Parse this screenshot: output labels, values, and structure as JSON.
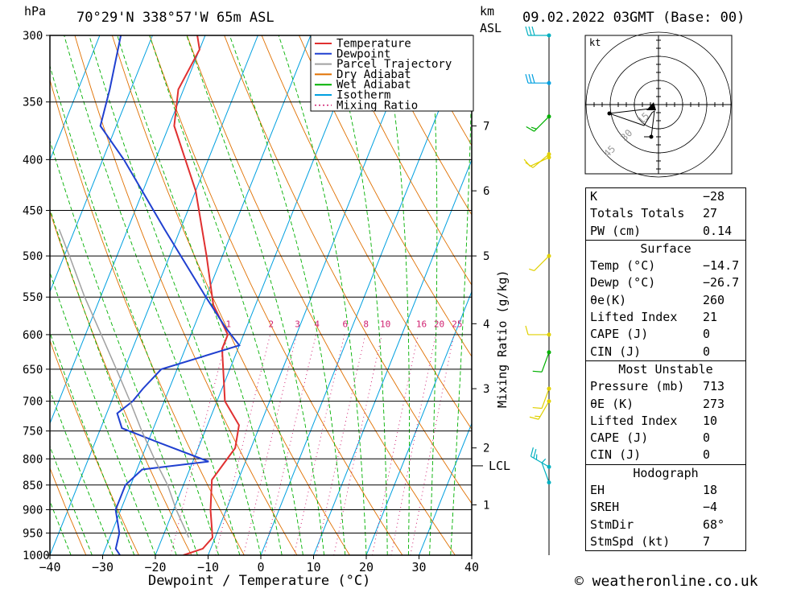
{
  "header": {
    "hpa_label": "hPa",
    "location": "70°29'N  338°57'W  65m  ASL",
    "km_label": "km",
    "asl_label": "ASL",
    "datetime": "09.02.2022  03GMT  (Base: 00)"
  },
  "chart_data": {
    "type": "line",
    "title": "",
    "xlabel": "Dewpoint / Temperature (°C)",
    "ylabel": "hPa",
    "right_label": "Mixing Ratio (g/kg)",
    "xlim": [
      -40,
      40
    ],
    "ylim": [
      1000,
      300
    ],
    "y_scale": "log",
    "skew": "skew-T",
    "grid": true,
    "legend_position": "top-right",
    "x_ticks": [
      "−40",
      "−30",
      "−20",
      "−10",
      "0",
      "10",
      "20",
      "30",
      "40"
    ],
    "pressure_ticks": [
      "300",
      "350",
      "400",
      "450",
      "500",
      "550",
      "600",
      "650",
      "700",
      "750",
      "800",
      "850",
      "900",
      "950",
      "1000"
    ],
    "pressure_values": [
      300,
      350,
      400,
      450,
      500,
      550,
      600,
      650,
      700,
      750,
      800,
      850,
      900,
      950,
      1000
    ],
    "km_ticks": [
      {
        "label": "7",
        "p": 370
      },
      {
        "label": "6",
        "p": 430
      },
      {
        "label": "5",
        "p": 500
      },
      {
        "label": "4",
        "p": 585
      },
      {
        "label": "3",
        "p": 680
      },
      {
        "label": "2",
        "p": 780
      },
      {
        "label": "1",
        "p": 890
      }
    ],
    "lcl": {
      "label": "LCL",
      "p": 813
    },
    "mixing_ratio_labels": [
      "1",
      "2",
      "3",
      "4",
      "6",
      "8",
      "10",
      "16",
      "20",
      "25"
    ],
    "mixing_ratio_values": [
      1,
      2,
      3,
      4,
      6,
      8,
      10,
      16,
      20,
      25
    ],
    "mixing_ratio_label_p": 592,
    "legend": [
      {
        "label": "Temperature",
        "color": "#e03030",
        "style": "solid"
      },
      {
        "label": "Dewpoint",
        "color": "#2040d0",
        "style": "solid"
      },
      {
        "label": "Parcel Trajectory",
        "color": "#a0a0a0",
        "style": "solid"
      },
      {
        "label": "Dry Adiabat",
        "color": "#e07000",
        "style": "solid"
      },
      {
        "label": "Wet Adiabat",
        "color": "#00b000",
        "style": "solid"
      },
      {
        "label": "Isotherm",
        "color": "#00a0e0",
        "style": "solid"
      },
      {
        "label": "Mixing Ratio",
        "color": "#d02070",
        "style": "dotted"
      }
    ],
    "series": [
      {
        "name": "Temperature",
        "color": "#e03030",
        "points": [
          [
            1000,
            -14.7
          ],
          [
            985,
            -11.5
          ],
          [
            960,
            -10.5
          ],
          [
            900,
            -13
          ],
          [
            840,
            -15
          ],
          [
            780,
            -13
          ],
          [
            740,
            -14
          ],
          [
            700,
            -18.5
          ],
          [
            620,
            -23
          ],
          [
            600,
            -23
          ],
          [
            560,
            -28
          ],
          [
            500,
            -33
          ],
          [
            430,
            -40
          ],
          [
            370,
            -49
          ],
          [
            340,
            -51
          ],
          [
            310,
            -50
          ],
          [
            300,
            -51.5
          ]
        ]
      },
      {
        "name": "Dewpoint",
        "color": "#2040d0",
        "points": [
          [
            1000,
            -26.7
          ],
          [
            985,
            -28
          ],
          [
            950,
            -28.5
          ],
          [
            900,
            -31
          ],
          [
            850,
            -31
          ],
          [
            820,
            -29
          ],
          [
            805,
            -17
          ],
          [
            770,
            -28
          ],
          [
            745,
            -36
          ],
          [
            720,
            -38
          ],
          [
            700,
            -36
          ],
          [
            680,
            -35
          ],
          [
            650,
            -33
          ],
          [
            615,
            -20
          ],
          [
            590,
            -24
          ],
          [
            550,
            -30
          ],
          [
            470,
            -43
          ],
          [
            400,
            -56
          ],
          [
            370,
            -63
          ],
          [
            340,
            -64
          ],
          [
            300,
            -66
          ]
        ]
      },
      {
        "name": "Parcel Trajectory",
        "color": "#a0a0a0",
        "points": [
          [
            960,
            -15
          ],
          [
            900,
            -19.5
          ],
          [
            850,
            -23
          ],
          [
            800,
            -27.5
          ],
          [
            750,
            -32
          ],
          [
            700,
            -36.5
          ],
          [
            650,
            -41.5
          ],
          [
            600,
            -47
          ],
          [
            550,
            -53
          ],
          [
            500,
            -59
          ],
          [
            470,
            -63
          ]
        ]
      }
    ],
    "wind_barbs": [
      {
        "p": 300,
        "color": "#00b0c0",
        "dir": 270,
        "speed": 30
      },
      {
        "p": 335,
        "color": "#00a0e0",
        "dir": 270,
        "speed": 30
      },
      {
        "p": 362,
        "color": "#00b000",
        "dir": 225,
        "speed": 15
      },
      {
        "p": 395,
        "color": "#e0d000",
        "dir": 230,
        "speed": 10
      },
      {
        "p": 398,
        "color": "#e0d000",
        "dir": 245,
        "speed": 10
      },
      {
        "p": 500,
        "color": "#e0d000",
        "dir": 225,
        "speed": 5
      },
      {
        "p": 600,
        "color": "#e0d000",
        "dir": 270,
        "speed": 10
      },
      {
        "p": 625,
        "color": "#00b000",
        "dir": 200,
        "speed": 10
      },
      {
        "p": 680,
        "color": "#e0d000",
        "dir": 200,
        "speed": 10
      },
      {
        "p": 700,
        "color": "#e0d000",
        "dir": 210,
        "speed": 15
      },
      {
        "p": 815,
        "color": "#00b0c0",
        "dir": 300,
        "speed": 25
      },
      {
        "p": 845,
        "color": "#00b0c0",
        "dir": 340,
        "speed": 5
      }
    ]
  },
  "hodograph": {
    "unit_label": "kt",
    "ring_labels": [
      "15",
      "30",
      "45"
    ]
  },
  "indices": {
    "rows": [
      {
        "label": "K",
        "value": "−28"
      },
      {
        "label": "Totals Totals",
        "value": "27"
      },
      {
        "label": "PW (cm)",
        "value": "0.14"
      }
    ]
  },
  "surface": {
    "title": "Surface",
    "rows": [
      {
        "label": "Temp (°C)",
        "value": "−14.7"
      },
      {
        "label": "Dewp (°C)",
        "value": "−26.7"
      },
      {
        "label": "θe(K)",
        "value": "260"
      },
      {
        "label": "Lifted Index",
        "value": "21"
      },
      {
        "label": "CAPE (J)",
        "value": "0"
      },
      {
        "label": "CIN (J)",
        "value": "0"
      }
    ]
  },
  "most_unstable": {
    "title": "Most Unstable",
    "rows": [
      {
        "label": "Pressure (mb)",
        "value": "713"
      },
      {
        "label": "θE (K)",
        "value": "273"
      },
      {
        "label": "Lifted Index",
        "value": "10"
      },
      {
        "label": "CAPE (J)",
        "value": "0"
      },
      {
        "label": "CIN (J)",
        "value": "0"
      }
    ]
  },
  "hodograph_table": {
    "title": "Hodograph",
    "rows": [
      {
        "label": "EH",
        "value": "18"
      },
      {
        "label": "SREH",
        "value": "−4"
      },
      {
        "label": "StmDir",
        "value": "68°"
      },
      {
        "label": "StmSpd (kt)",
        "value": "7"
      }
    ]
  },
  "footer": {
    "copyright": "© weatheronline.co.uk"
  }
}
